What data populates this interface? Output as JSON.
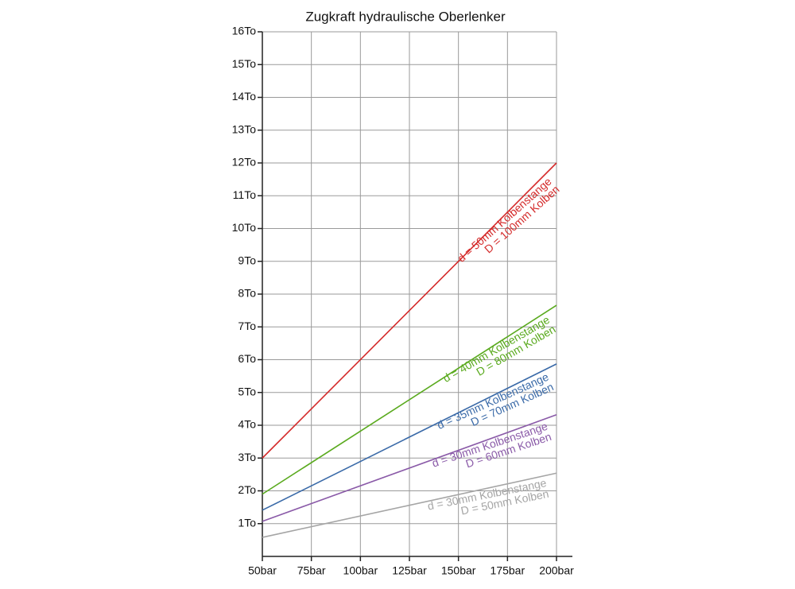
{
  "chart_data": {
    "type": "line",
    "title": "Zugkraft hydraulische Oberlenker",
    "xlim": [
      50,
      200
    ],
    "xticks": [
      {
        "value": 50,
        "label": "50bar"
      },
      {
        "value": 75,
        "label": "75bar"
      },
      {
        "value": 100,
        "label": "100bar"
      },
      {
        "value": 125,
        "label": "125bar"
      },
      {
        "value": 150,
        "label": "150bar"
      },
      {
        "value": 175,
        "label": "175bar"
      },
      {
        "value": 200,
        "label": "200bar"
      }
    ],
    "ylim": [
      0,
      16
    ],
    "yticks": [
      {
        "value": 1,
        "label": "1To"
      },
      {
        "value": 2,
        "label": "2To"
      },
      {
        "value": 3,
        "label": "3To"
      },
      {
        "value": 4,
        "label": "4To"
      },
      {
        "value": 5,
        "label": "5To"
      },
      {
        "value": 6,
        "label": "6To"
      },
      {
        "value": 7,
        "label": "7To"
      },
      {
        "value": 8,
        "label": "8To"
      },
      {
        "value": 9,
        "label": "9To"
      },
      {
        "value": 10,
        "label": "10To"
      },
      {
        "value": 11,
        "label": "11To"
      },
      {
        "value": 12,
        "label": "12To"
      },
      {
        "value": 13,
        "label": "13To"
      },
      {
        "value": 14,
        "label": "14To"
      },
      {
        "value": 15,
        "label": "15To"
      },
      {
        "value": 16,
        "label": "16To"
      }
    ],
    "grid": true,
    "x": [
      50,
      200
    ],
    "series": [
      {
        "name": "D = 100mm Kolben",
        "label_lines": [
          "D = 100mm Kolben",
          "d = 50mm Kolbenstange"
        ],
        "color": "#d42a2a",
        "values": [
          3.0,
          12.0
        ]
      },
      {
        "name": "D = 80mm Kolben",
        "label_lines": [
          "D = 80mm Kolben",
          "d = 40mm Kolbenstange"
        ],
        "color": "#5aaa1e",
        "values": [
          1.9,
          7.66
        ]
      },
      {
        "name": "D = 70mm Kolben",
        "label_lines": [
          "D = 70mm Kolben",
          "d = 35mm Kolbenstange"
        ],
        "color": "#3a6aa8",
        "values": [
          1.41,
          5.87
        ]
      },
      {
        "name": "D = 60mm Kolben",
        "label_lines": [
          "D = 60mm Kolben",
          "d = 30mm Kolbenstange"
        ],
        "color": "#8a5aa8",
        "values": [
          1.07,
          4.32
        ]
      },
      {
        "name": "D = 50mm Kolben",
        "label_lines": [
          "D = 50mm Kolben",
          "d = 30mm Kolbenstange"
        ],
        "color": "#a5a5a5",
        "values": [
          0.58,
          2.54
        ]
      }
    ]
  }
}
